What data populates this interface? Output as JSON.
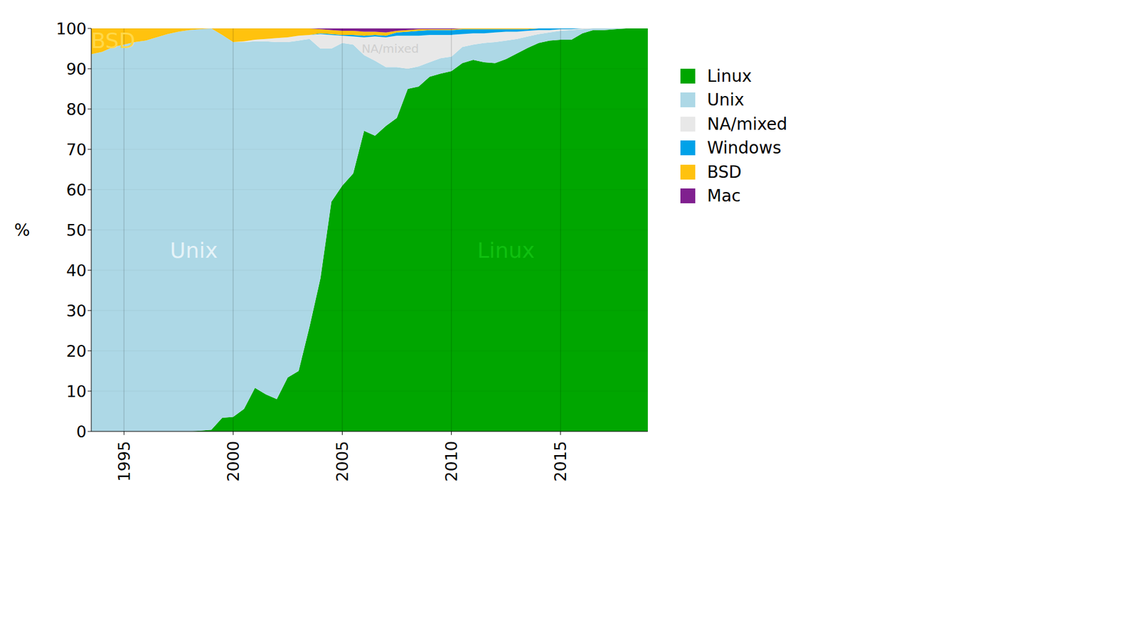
{
  "chart_data": {
    "type": "area",
    "stacked": true,
    "ylabel": "%",
    "legend": "right",
    "grid": true,
    "x": [
      1993.5,
      1994,
      1994.5,
      1995,
      1995.5,
      1996,
      1996.5,
      1997,
      1997.5,
      1998,
      1998.5,
      1999,
      1999.5,
      2000,
      2000.5,
      2001,
      2001.5,
      2002,
      2002.5,
      2003,
      2003.5,
      2004,
      2004.5,
      2005,
      2005.5,
      2006,
      2006.5,
      2007,
      2007.5,
      2008,
      2008.5,
      2009,
      2009.5,
      2010,
      2010.5,
      2011,
      2011.5,
      2012,
      2012.5,
      2013,
      2013.5,
      2014,
      2014.5,
      2015,
      2015.5,
      2016,
      2016.5,
      2017,
      2017.5,
      2018,
      2018.5,
      2019
    ],
    "xlim": [
      1993.5,
      2019
    ],
    "xticks": [
      1995,
      2000,
      2005,
      2010,
      2015
    ],
    "ylim": [
      0,
      100
    ],
    "yticks": [
      0,
      10,
      20,
      30,
      40,
      50,
      60,
      70,
      80,
      90,
      100
    ],
    "series": [
      {
        "name": "Linux",
        "color": "#00a600",
        "values": [
          0,
          0,
          0,
          0,
          0,
          0,
          0,
          0,
          0,
          0,
          0.2,
          0.4,
          3.4,
          3.6,
          5.6,
          10.8,
          9.2,
          8,
          13.4,
          15,
          26,
          38,
          57,
          61,
          64,
          74.6,
          73.4,
          75.8,
          77.8,
          85,
          85.6,
          88,
          88.8,
          89.4,
          91.4,
          92.2,
          91.6,
          91.4,
          92.4,
          93.8,
          95.2,
          96.4,
          97,
          97.2,
          97.2,
          98.8,
          99.6,
          99.6,
          99.8,
          100,
          100,
          100
        ]
      },
      {
        "name": "Unix",
        "color": "#add8e6",
        "values": [
          93.6,
          94.2,
          95.4,
          96,
          96.6,
          97,
          97.8,
          98.6,
          99.2,
          99.6,
          99.6,
          99.6,
          95,
          93,
          91,
          86,
          87.6,
          88.6,
          83.2,
          82,
          71.4,
          57,
          38,
          35.4,
          32,
          18.8,
          18.6,
          14.6,
          12.6,
          5,
          5,
          3.6,
          3.8,
          3.6,
          4,
          3.8,
          4.8,
          5.2,
          4.6,
          3.6,
          2.8,
          2.2,
          2,
          2.2,
          2.4,
          1,
          0.4,
          0.4,
          0.2,
          0,
          0,
          0
        ]
      },
      {
        "name": "NA/mixed",
        "color": "#e8e8e8",
        "values": [
          0,
          0,
          0,
          0,
          0,
          0,
          0,
          0,
          0,
          0,
          0,
          0,
          0,
          0,
          0.2,
          0.4,
          0.6,
          1,
          1.2,
          1.2,
          1,
          3.6,
          3.4,
          1.8,
          2,
          4.4,
          6,
          7.4,
          7.8,
          8.2,
          7.6,
          6.8,
          5.8,
          5.4,
          3.2,
          2.8,
          2.4,
          2.4,
          2.2,
          1.8,
          1.4,
          1,
          0.6,
          0.4,
          0.2,
          0.2,
          0,
          0,
          0,
          0,
          0,
          0
        ]
      },
      {
        "name": "Windows",
        "color": "#00a2e8",
        "values": [
          0,
          0,
          0,
          0,
          0,
          0,
          0,
          0,
          0,
          0,
          0,
          0,
          0,
          0,
          0,
          0,
          0,
          0,
          0,
          0,
          0,
          0.2,
          0.2,
          0.2,
          0.4,
          0.4,
          0.4,
          0.4,
          0.8,
          1,
          1.2,
          1.2,
          1.2,
          1.2,
          1.2,
          1,
          1,
          0.8,
          0.6,
          0.6,
          0.4,
          0.4,
          0.4,
          0.2,
          0.2,
          0,
          0,
          0,
          0,
          0,
          0,
          0
        ]
      },
      {
        "name": "BSD",
        "color": "#ffc20e",
        "values": [
          6.4,
          5.8,
          4.6,
          4,
          3.4,
          3,
          2.2,
          1.4,
          0.8,
          0.4,
          0.2,
          0,
          1.6,
          3.4,
          3.2,
          2.8,
          2.6,
          2.4,
          2.2,
          1.8,
          1.6,
          1,
          1,
          1,
          1,
          1,
          0.8,
          0.8,
          0.4,
          0.4,
          0.4,
          0.2,
          0.2,
          0.2,
          0.2,
          0.2,
          0.2,
          0.2,
          0.2,
          0.2,
          0.2,
          0,
          0,
          0,
          0,
          0,
          0,
          0,
          0,
          0,
          0,
          0
        ]
      },
      {
        "name": "Mac",
        "color": "#80208f",
        "values": [
          0,
          0,
          0,
          0,
          0,
          0,
          0,
          0,
          0,
          0,
          0,
          0,
          0,
          0,
          0,
          0,
          0,
          0,
          0,
          0,
          0,
          0.2,
          0.4,
          0.6,
          0.6,
          0.8,
          0.8,
          1,
          0.6,
          0.4,
          0.2,
          0.2,
          0.2,
          0.2,
          0,
          0,
          0,
          0,
          0,
          0,
          0,
          0,
          0,
          0,
          0,
          0,
          0,
          0,
          0,
          0,
          0,
          0
        ]
      }
    ],
    "annotations": [
      {
        "text": "Unix",
        "x": 1998.2,
        "y": 45,
        "color": "#e6f3f8"
      },
      {
        "text": "Linux",
        "x": 2012.5,
        "y": 45,
        "color": "#10c010"
      },
      {
        "text": "NA/mixed",
        "x": 2007.2,
        "y": 95,
        "color": "#cfcfcf"
      },
      {
        "text": "BSD",
        "x": 1994.5,
        "y": 97,
        "color": "#ffd84a"
      }
    ]
  }
}
